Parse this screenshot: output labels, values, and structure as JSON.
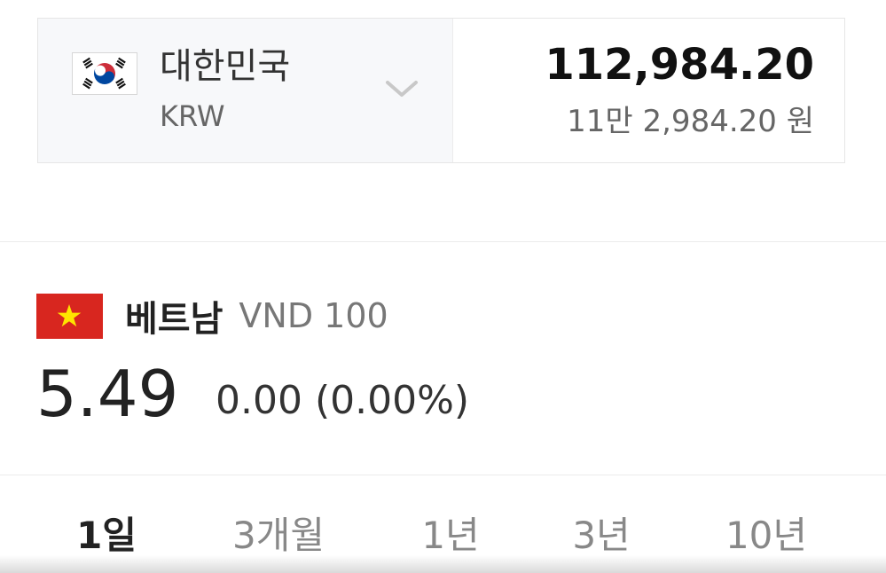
{
  "converter": {
    "from_country": "대한민국",
    "from_code": "KRW",
    "flag_icon": "south-korea-flag-icon",
    "chevron_icon": "chevron-down-icon",
    "amount": "112,984.20",
    "amount_korean": "11만 2,984.20 원"
  },
  "rate": {
    "flag_icon": "vietnam-flag-icon",
    "country": "베트남",
    "unit": "VND 100",
    "value": "5.49",
    "change": "0.00 (0.00%)"
  },
  "tabs": [
    "1일",
    "3개월",
    "1년",
    "3년",
    "10년"
  ],
  "active_tab": "1일",
  "colors": {
    "vietnam_red": "#d8261f",
    "star_yellow": "#ffe400",
    "korea_red": "#cd2e3a",
    "korea_blue": "#0047a0"
  }
}
